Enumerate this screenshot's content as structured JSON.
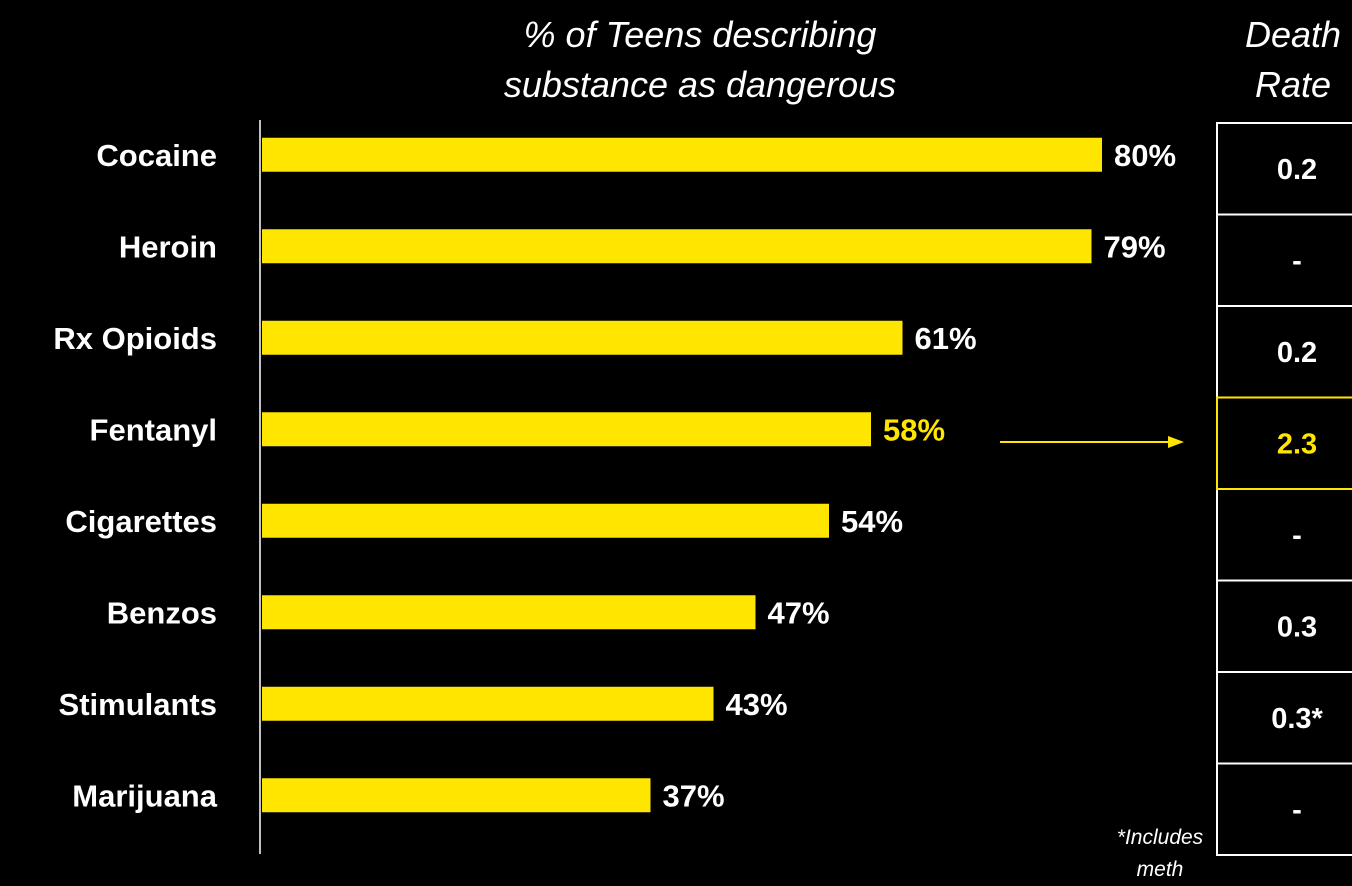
{
  "title_line1": "% of Teens describing",
  "title_line2": "substance as dangerous",
  "death_title_line1": "Death",
  "death_title_line2": "Rate",
  "footnote_line1": "*Includes",
  "footnote_line2": "meth",
  "colors": {
    "background": "#000000",
    "bar": "#FFE600",
    "highlight": "#FFE600",
    "text": "#FFFFFF",
    "table_border": "#FFFFFF"
  },
  "chart_data": {
    "type": "bar",
    "orientation": "horizontal",
    "categories": [
      "Cocaine",
      "Heroin",
      "Rx Opioids",
      "Fentanyl",
      "Cigarettes",
      "Benzos",
      "Stimulants",
      "Marijuana"
    ],
    "values": [
      80,
      79,
      61,
      58,
      54,
      47,
      43,
      37
    ],
    "value_labels": [
      "80%",
      "79%",
      "61%",
      "58%",
      "54%",
      "47%",
      "43%",
      "37%"
    ],
    "highlight": "Fentanyl",
    "title": "% of Teens describing substance as dangerous",
    "xlim": [
      0,
      100
    ],
    "grid": false,
    "death_rate": [
      "0.2",
      "-",
      "0.2",
      "2.3",
      "-",
      "0.3",
      "0.3*",
      "-"
    ]
  }
}
